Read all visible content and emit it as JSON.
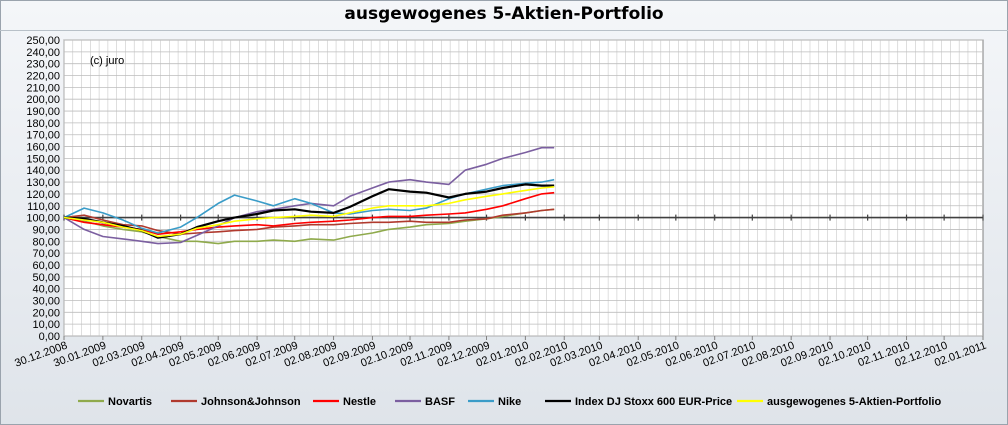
{
  "chart_data": {
    "type": "line",
    "title": "ausgewogenes 5-Aktien-Portfolio",
    "annotation": "(c) juro",
    "y_tick_labels": [
      "0,00",
      "10,00",
      "20,00",
      "30,00",
      "40,00",
      "50,00",
      "60,00",
      "70,00",
      "80,00",
      "90,00",
      "100,00",
      "110,00",
      "120,00",
      "130,00",
      "140,00",
      "150,00",
      "160,00",
      "170,00",
      "180,00",
      "190,00",
      "200,00",
      "210,00",
      "220,00",
      "230,00",
      "240,00",
      "250,00"
    ],
    "ylim": [
      0,
      250
    ],
    "x_tick_labels": [
      "30.12.2008",
      "30.01.2009",
      "02.03.2009",
      "02.04.2009",
      "02.05.2009",
      "02.06.2009",
      "02.07.2009",
      "02.08.2009",
      "02.09.2009",
      "02.10.2009",
      "02.11.2009",
      "02.12.2009",
      "02.01.2010",
      "02.02.2010",
      "02.03.2010",
      "02.04.2010",
      "02.05.2010",
      "02.06.2010",
      "02.07.2010",
      "02.08.2010",
      "02.09.2010",
      "02.10.2010",
      "02.11.2010",
      "02.12.2010",
      "02.01.2011"
    ],
    "x_values": [
      "30.12.2008",
      "15.01.2009",
      "30.01.2009",
      "15.02.2009",
      "02.03.2009",
      "15.03.2009",
      "02.04.2009",
      "15.04.2009",
      "02.05.2009",
      "15.05.2009",
      "02.06.2009",
      "15.06.2009",
      "02.07.2009",
      "15.07.2009",
      "02.08.2009",
      "15.08.2009",
      "02.09.2009",
      "15.09.2009",
      "02.10.2009",
      "15.10.2009",
      "02.11.2009",
      "15.11.2009",
      "02.12.2009",
      "15.12.2009",
      "02.01.2010",
      "15.01.2010",
      "25.01.2010"
    ],
    "baseline": {
      "value": 100,
      "x_range": [
        "30.12.2008",
        "02.01.2011"
      ]
    },
    "grid": true,
    "legend_position": "bottom",
    "series": [
      {
        "name": "Novartis",
        "color": "#8faa4c",
        "values": [
          100,
          97,
          93,
          90,
          88,
          84,
          80,
          80,
          78,
          80,
          80,
          81,
          80,
          82,
          81,
          84,
          87,
          90,
          92,
          94,
          95,
          97,
          99,
          101,
          104,
          106,
          107
        ]
      },
      {
        "name": "Johnson&Johnson",
        "color": "#b03a2e",
        "values": [
          100,
          102,
          98,
          94,
          93,
          89,
          86,
          87,
          88,
          89,
          90,
          92,
          93,
          94,
          94,
          95,
          96,
          96,
          97,
          96,
          96,
          98,
          99,
          102,
          104,
          106,
          107
        ]
      },
      {
        "name": "Nestle",
        "color": "#ff0000",
        "values": [
          100,
          96,
          94,
          92,
          90,
          86,
          88,
          90,
          92,
          93,
          94,
          93,
          95,
          96,
          97,
          98,
          100,
          101,
          101,
          102,
          103,
          104,
          107,
          110,
          116,
          120,
          121
        ]
      },
      {
        "name": "BASF",
        "color": "#7b5fa0",
        "values": [
          100,
          90,
          84,
          82,
          80,
          78,
          79,
          85,
          93,
          100,
          105,
          107,
          110,
          112,
          110,
          118,
          125,
          130,
          132,
          130,
          128,
          140,
          145,
          150,
          155,
          159,
          159
        ]
      },
      {
        "name": "Nike",
        "color": "#3a9cc8",
        "values": [
          100,
          108,
          104,
          98,
          91,
          87,
          92,
          100,
          112,
          119,
          114,
          110,
          116,
          112,
          104,
          103,
          106,
          107,
          106,
          108,
          116,
          120,
          124,
          127,
          129,
          130,
          132
        ]
      },
      {
        "name": "Index DJ Stoxx 600 EUR-Price",
        "color": "#000000",
        "values": [
          100,
          99,
          96,
          93,
          89,
          83,
          86,
          92,
          97,
          100,
          103,
          106,
          107,
          105,
          104,
          109,
          118,
          124,
          122,
          121,
          117,
          120,
          122,
          125,
          128,
          127,
          127
        ]
      },
      {
        "name": "ausgewogenes 5-Aktien-Portfolio",
        "color": "#ffff00",
        "values": [
          100,
          98,
          96,
          92,
          89,
          84,
          86,
          91,
          94,
          97,
          99,
          100,
          101,
          102,
          101,
          104,
          108,
          110,
          110,
          110,
          112,
          115,
          118,
          120,
          123,
          125,
          126
        ]
      }
    ]
  }
}
